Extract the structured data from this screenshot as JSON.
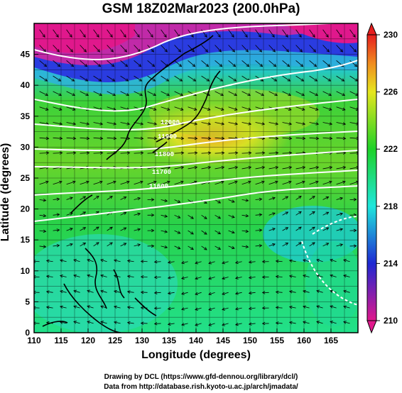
{
  "title": "GSM 18Z02Mar2023 (200.0hPa)",
  "xaxis": {
    "label": "Longitude (degrees)",
    "range": [
      110,
      170
    ],
    "ticks": [
      110,
      115,
      120,
      125,
      130,
      135,
      140,
      145,
      150,
      155,
      160,
      165
    ]
  },
  "yaxis": {
    "label": "Latitude  (degrees)",
    "range": [
      0,
      50
    ],
    "ticks": [
      0,
      5,
      10,
      15,
      20,
      25,
      30,
      35,
      40,
      45
    ]
  },
  "colorbar": {
    "range": [
      210,
      230
    ],
    "ticks": [
      210,
      214,
      218,
      222,
      226,
      230
    ],
    "colors": {
      "low": "#e0188c",
      "blue": "#1e28d2",
      "cyan": "#1ee6dc",
      "green": "#1ed228",
      "yellow": "#d2e61e",
      "orange": "#f08c1e",
      "red": "#e61e1e"
    }
  },
  "contours": {
    "labels": [
      "11600",
      "11700",
      "11800",
      "11900",
      "12000"
    ]
  },
  "credits": {
    "line1": "Drawing by DCL (https://www.gfd-dennou.org/library/dcl/)",
    "line2": "Data from http://database.rish.kyoto-u.ac.jp/arch/jmadata/"
  }
}
